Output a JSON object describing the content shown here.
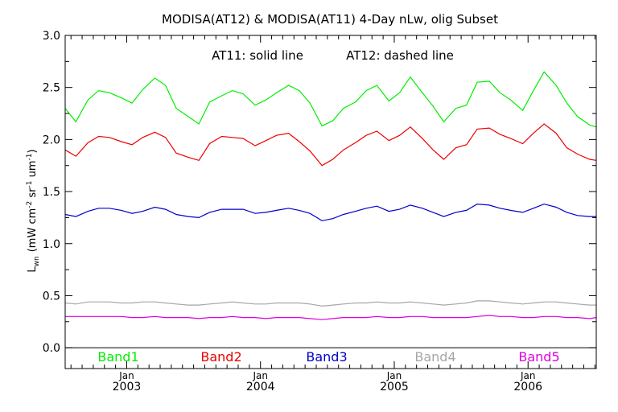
{
  "chart_data": {
    "type": "line",
    "title": "MODISA(AT12) & MODISA(AT11) 4-Day nLw, olig Subset",
    "annotation_left": "AT11: solid line",
    "annotation_right": "AT12: dashed line",
    "ylabel": "L_wn (mW cm^-2 sr^-1 um^-1)",
    "ylabel_parts": {
      "L": "L",
      "L_sub": "wn",
      "open": "(mW cm",
      "cm_sup": "-2",
      "sr": " sr",
      "sr_sup": "-1",
      "um": " um",
      "um_sup": "-1",
      "close": ")"
    },
    "ylim": [
      -0.2,
      3.0
    ],
    "yticks": [
      "0.0",
      "0.5",
      "1.0",
      "1.5",
      "2.0",
      "2.5",
      "3.0"
    ],
    "xlim": [
      2002.54,
      2006.51
    ],
    "xticks_month": [
      "Jan",
      "Jan",
      "Jan",
      "Jan"
    ],
    "xticks_year": [
      "2003",
      "2004",
      "2005",
      "2006"
    ],
    "grid": false,
    "legend_placement": "bottom inside plot",
    "colors": {
      "Band1": "#00ee00",
      "Band2": "#ee0000",
      "Band3": "#0000cc",
      "Band4": "#a6a6a6",
      "Band5": "#dd00dd"
    },
    "x": [
      2002.54,
      2002.62,
      2002.71,
      2002.79,
      2002.87,
      2002.96,
      2003.04,
      2003.12,
      2003.21,
      2003.29,
      2003.37,
      2003.46,
      2003.54,
      2003.62,
      2003.71,
      2003.79,
      2003.87,
      2003.96,
      2004.04,
      2004.12,
      2004.21,
      2004.29,
      2004.37,
      2004.46,
      2004.54,
      2004.62,
      2004.71,
      2004.79,
      2004.87,
      2004.96,
      2005.04,
      2005.12,
      2005.21,
      2005.29,
      2005.37,
      2005.46,
      2005.54,
      2005.62,
      2005.71,
      2005.79,
      2005.87,
      2005.96,
      2006.04,
      2006.12,
      2006.21,
      2006.29,
      2006.37,
      2006.46,
      2006.51
    ],
    "series": [
      {
        "name": "Band1",
        "values": [
          2.3,
          2.17,
          2.38,
          2.47,
          2.45,
          2.4,
          2.35,
          2.48,
          2.59,
          2.52,
          2.3,
          2.22,
          2.15,
          2.36,
          2.42,
          2.47,
          2.44,
          2.33,
          2.38,
          2.45,
          2.52,
          2.47,
          2.35,
          2.13,
          2.18,
          2.3,
          2.36,
          2.47,
          2.52,
          2.37,
          2.45,
          2.6,
          2.45,
          2.32,
          2.17,
          2.3,
          2.33,
          2.55,
          2.56,
          2.45,
          2.38,
          2.28,
          2.47,
          2.65,
          2.52,
          2.35,
          2.22,
          2.14,
          2.12
        ]
      },
      {
        "name": "Band2",
        "values": [
          1.9,
          1.84,
          1.97,
          2.03,
          2.02,
          1.98,
          1.95,
          2.02,
          2.07,
          2.02,
          1.87,
          1.83,
          1.8,
          1.96,
          2.03,
          2.02,
          2.01,
          1.94,
          1.99,
          2.04,
          2.06,
          1.98,
          1.89,
          1.75,
          1.81,
          1.9,
          1.97,
          2.04,
          2.08,
          1.99,
          2.04,
          2.12,
          2.01,
          1.9,
          1.81,
          1.92,
          1.95,
          2.1,
          2.11,
          2.05,
          2.01,
          1.96,
          2.06,
          2.15,
          2.06,
          1.92,
          1.86,
          1.81,
          1.8
        ]
      },
      {
        "name": "Band3",
        "values": [
          1.28,
          1.26,
          1.31,
          1.34,
          1.34,
          1.32,
          1.29,
          1.31,
          1.35,
          1.33,
          1.28,
          1.26,
          1.25,
          1.3,
          1.33,
          1.33,
          1.33,
          1.29,
          1.3,
          1.32,
          1.34,
          1.32,
          1.29,
          1.22,
          1.24,
          1.28,
          1.31,
          1.34,
          1.36,
          1.31,
          1.33,
          1.37,
          1.34,
          1.3,
          1.26,
          1.3,
          1.32,
          1.38,
          1.37,
          1.34,
          1.32,
          1.3,
          1.34,
          1.38,
          1.35,
          1.3,
          1.27,
          1.26,
          1.26
        ]
      },
      {
        "name": "Band4",
        "values": [
          0.43,
          0.42,
          0.44,
          0.44,
          0.44,
          0.43,
          0.43,
          0.44,
          0.44,
          0.43,
          0.42,
          0.41,
          0.41,
          0.42,
          0.43,
          0.44,
          0.43,
          0.42,
          0.42,
          0.43,
          0.43,
          0.43,
          0.42,
          0.4,
          0.41,
          0.42,
          0.43,
          0.43,
          0.44,
          0.43,
          0.43,
          0.44,
          0.43,
          0.42,
          0.41,
          0.42,
          0.43,
          0.45,
          0.45,
          0.44,
          0.43,
          0.42,
          0.43,
          0.44,
          0.44,
          0.43,
          0.42,
          0.41,
          0.41
        ]
      },
      {
        "name": "Band5",
        "values": [
          0.3,
          0.3,
          0.3,
          0.3,
          0.3,
          0.3,
          0.29,
          0.29,
          0.3,
          0.29,
          0.29,
          0.29,
          0.28,
          0.29,
          0.29,
          0.3,
          0.29,
          0.29,
          0.28,
          0.29,
          0.29,
          0.29,
          0.28,
          0.27,
          0.28,
          0.29,
          0.29,
          0.29,
          0.3,
          0.29,
          0.29,
          0.3,
          0.3,
          0.29,
          0.29,
          0.29,
          0.29,
          0.3,
          0.31,
          0.3,
          0.3,
          0.29,
          0.29,
          0.3,
          0.3,
          0.29,
          0.29,
          0.28,
          0.29
        ]
      }
    ]
  }
}
